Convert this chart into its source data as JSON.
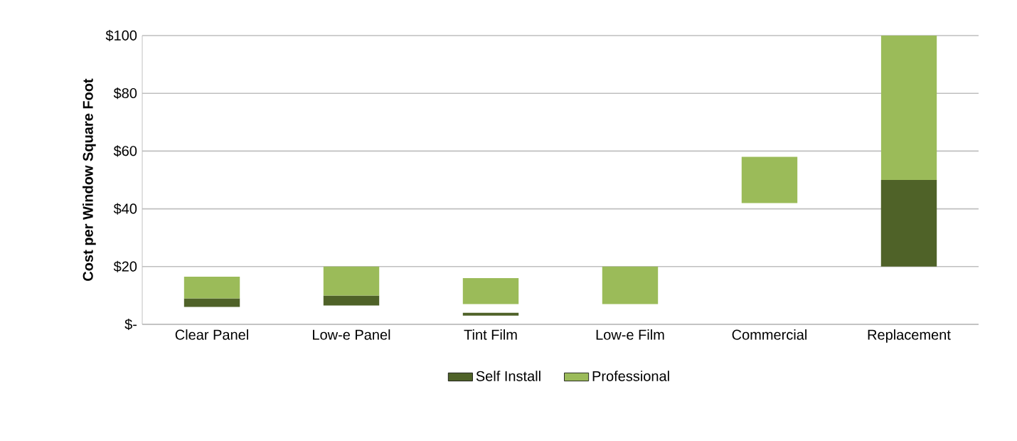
{
  "chart_data": {
    "type": "bar",
    "ylabel": "Cost per Window Square Foot",
    "categories": [
      "Clear Panel",
      "Low-e Panel",
      "Tint Film",
      "Low-e Film",
      "Commercial",
      "Replacement"
    ],
    "series": [
      {
        "name": "Self Install",
        "color": "#4f6228",
        "base": [
          6,
          6.5,
          3,
          null,
          null,
          20
        ],
        "values": [
          3,
          3.5,
          1,
          null,
          null,
          30
        ]
      },
      {
        "name": "Professional",
        "color": "#9bbb59",
        "base": [
          9,
          10,
          7,
          7,
          42,
          50
        ],
        "values": [
          7.5,
          10,
          9,
          13,
          16,
          50
        ]
      }
    ],
    "ylim": [
      0,
      100
    ],
    "yticks": [
      {
        "value": 0,
        "label": "$-"
      },
      {
        "value": 20,
        "label": "$20"
      },
      {
        "value": 40,
        "label": "$40"
      },
      {
        "value": 60,
        "label": "$60"
      },
      {
        "value": 80,
        "label": "$80"
      },
      {
        "value": 100,
        "label": "$100"
      }
    ],
    "grid": "y",
    "legend": "bottom"
  }
}
